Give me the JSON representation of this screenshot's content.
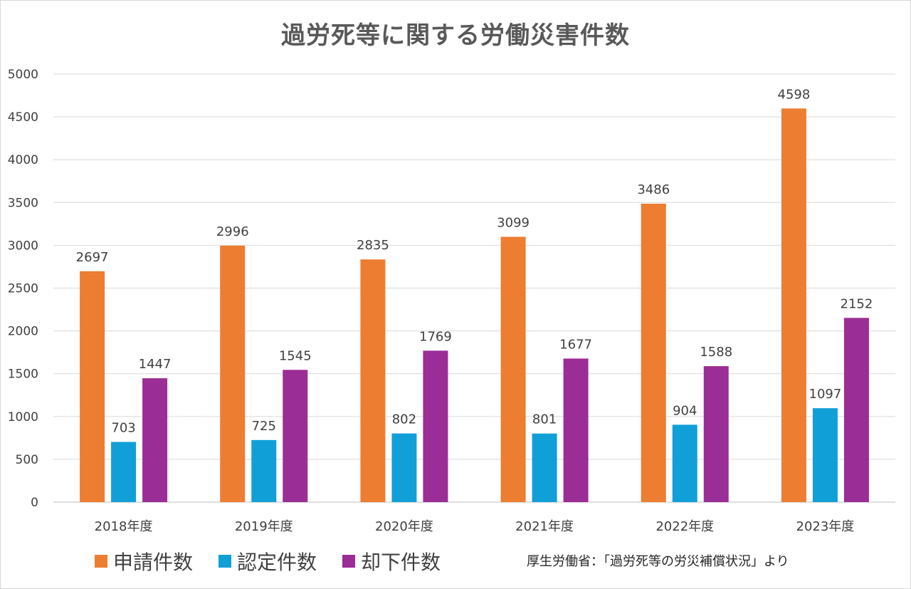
{
  "chart_data": {
    "type": "bar",
    "title": "過労死等に関する労働災害件数",
    "categories": [
      "2018年度",
      "2019年度",
      "2020年度",
      "2021年度",
      "2022年度",
      "2023年度"
    ],
    "series": [
      {
        "name": "申請件数",
        "color": "#ED7D31",
        "values": [
          2697,
          2996,
          2835,
          3099,
          3486,
          4598
        ]
      },
      {
        "name": "認定件数",
        "color": "#119FD8",
        "values": [
          703,
          725,
          802,
          801,
          904,
          1097
        ]
      },
      {
        "name": "却下件数",
        "color": "#9B2D96",
        "values": [
          1447,
          1545,
          1769,
          1677,
          1588,
          2152
        ]
      }
    ],
    "ylim": [
      0,
      5000
    ],
    "yticks": [
      0,
      500,
      1000,
      1500,
      2000,
      2500,
      3000,
      3500,
      4000,
      4500,
      5000
    ],
    "grid": true,
    "legend_position": "bottom-left",
    "data_labels": true
  },
  "source_note": "厚生労働省：「過労死等の労災補償状況」より"
}
